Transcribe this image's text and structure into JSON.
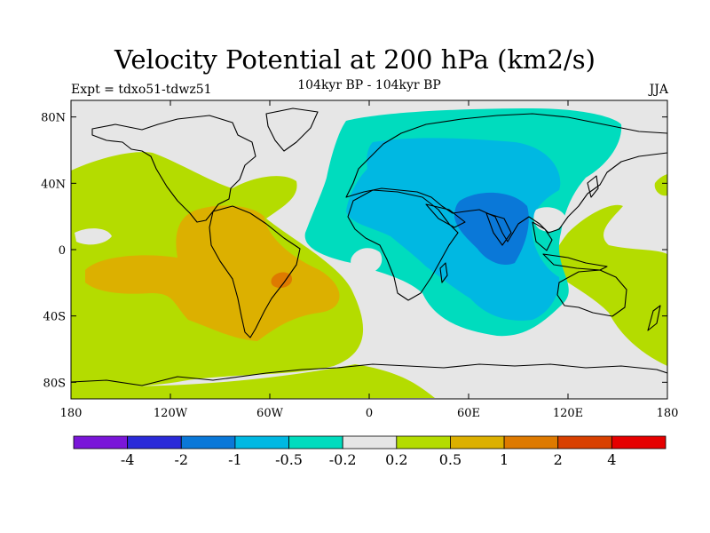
{
  "title": "Velocity Potential at 200 hPa (km2/s)",
  "subtitle": "104kyr BP - 104kyr BP",
  "experiment": "Expt = tdxo51-tdwz51",
  "season": "JJA",
  "map": {
    "projection": "cylindrical equidistant",
    "lon_range": [
      -180,
      180
    ],
    "lat_range": [
      -90,
      90
    ],
    "lat_ticks": [
      {
        "value": 80,
        "label": "80N"
      },
      {
        "value": 40,
        "label": "40N"
      },
      {
        "value": 0,
        "label": "0"
      },
      {
        "value": -40,
        "label": "40S"
      },
      {
        "value": -80,
        "label": "80S"
      }
    ],
    "lon_ticks": [
      {
        "value": -180,
        "label": "180"
      },
      {
        "value": -120,
        "label": "120W"
      },
      {
        "value": -60,
        "label": "60W"
      },
      {
        "value": 0,
        "label": "0"
      },
      {
        "value": 60,
        "label": "60E"
      },
      {
        "value": 120,
        "label": "120E"
      },
      {
        "value": 180,
        "label": "180"
      }
    ]
  },
  "colorbar": {
    "colors": [
      "#7a16d8",
      "#2a2ad8",
      "#0a78d8",
      "#00b8e2",
      "#00dcbe",
      "#e6e6e6",
      "#b4dc00",
      "#dcb000",
      "#de7a00",
      "#d84000",
      "#e60000"
    ],
    "labels": [
      "-4",
      "-2",
      "-1",
      "-0.5",
      "-0.2",
      "0.2",
      "0.5",
      "1",
      "2",
      "4"
    ]
  },
  "chart_data": {
    "type": "heatmap",
    "title": "Velocity Potential at 200 hPa (km2/s)",
    "subtitle": "104kyr BP - 104kyr BP",
    "variable": "200 hPa velocity potential difference (JJA)",
    "units": "km2/s",
    "contour_levels": [
      -4,
      -2,
      -1,
      -0.5,
      -0.2,
      0.2,
      0.5,
      1,
      2,
      4
    ],
    "regions": [
      {
        "name": "Eurasia/Africa/Indian Ocean negative anomaly",
        "range": "-0.5 to -0.2",
        "color_index": 4
      },
      {
        "name": "Africa/Middle East/Indian Ocean core",
        "range": "-1 to -0.5",
        "color_index": 3
      },
      {
        "name": "India/Bay of Bengal minimum",
        "range": "-2 to -1",
        "color_index": 2
      },
      {
        "name": "Pacific/Americas positive anomaly",
        "range": "0.2 to 0.5",
        "color_index": 6
      },
      {
        "name": "Tropical America/South Atlantic",
        "range": "0.5 to 1",
        "color_index": 7
      },
      {
        "name": "Central Brazil maximum",
        "range": "1 to 2",
        "color_index": 8
      },
      {
        "name": "Western Pacific/Australia positive anomaly",
        "range": "0.2 to 0.5",
        "color_index": 6
      }
    ]
  }
}
